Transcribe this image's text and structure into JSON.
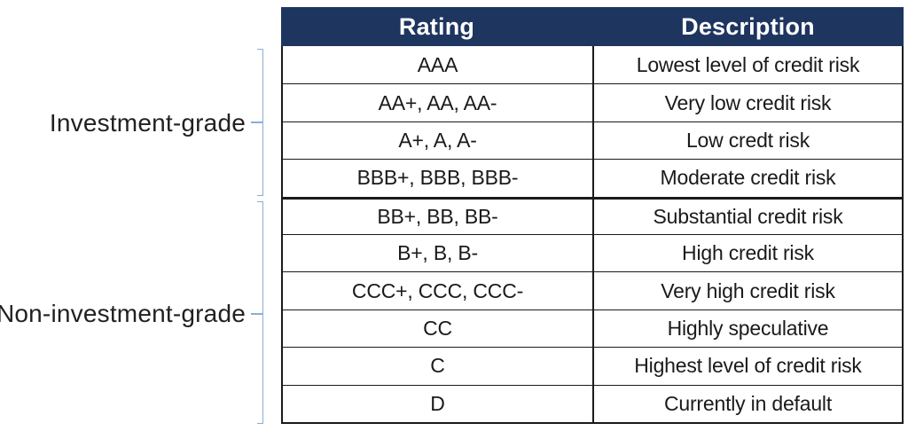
{
  "table": {
    "header": {
      "columns": [
        "Rating",
        "Description"
      ]
    },
    "rows": [
      {
        "rating": "AAA",
        "description": "Lowest level of credit risk"
      },
      {
        "rating": "AA+, AA, AA-",
        "description": "Very low credit risk"
      },
      {
        "rating": "A+, A, A-",
        "description": "Low credt risk"
      },
      {
        "rating": "BBB+, BBB, BBB-",
        "description": "Moderate credit risk"
      },
      {
        "rating": "BB+, BB, BB-",
        "description": "Substantial credit risk"
      },
      {
        "rating": "B+, B, B-",
        "description": "High credit risk"
      },
      {
        "rating": "CCC+, CCC, CCC-",
        "description": "Very high credit risk"
      },
      {
        "rating": "CC",
        "description": "Highly speculative"
      },
      {
        "rating": "C",
        "description": "Highest level of credit risk"
      },
      {
        "rating": "D",
        "description": "Currently in default"
      }
    ]
  },
  "groups": [
    {
      "label": "Investment-grade",
      "row_start": 1,
      "row_end": 4
    },
    {
      "label": "Non-investment-grade",
      "row_start": 5,
      "row_end": 10
    }
  ],
  "colors": {
    "header_bg": "#1e3560",
    "header_text": "#ffffff",
    "body_text": "#1a1a1a",
    "border": "#1a1a1a",
    "bracket": "#8aaed3",
    "background": "#ffffff"
  }
}
